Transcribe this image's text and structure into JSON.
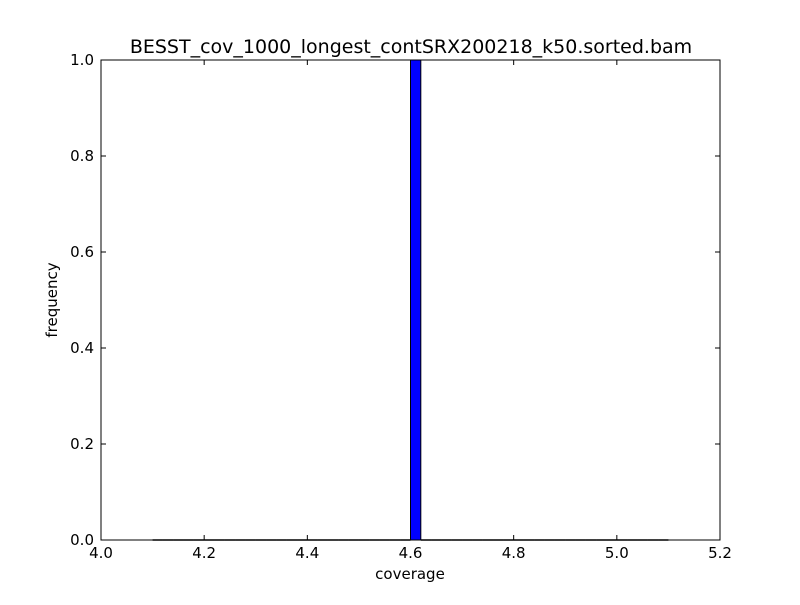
{
  "chart_data": {
    "type": "bar",
    "title": "BESST_cov_1000_longest_contSRX200218_k50.sorted.bam",
    "xlabel": "coverage",
    "ylabel": "frequency",
    "xlim": [
      4.0,
      5.2
    ],
    "ylim": [
      0.0,
      1.0
    ],
    "xticks": [
      "4.0",
      "4.2",
      "4.4",
      "4.6",
      "4.8",
      "5.0",
      "5.2"
    ],
    "yticks": [
      "0.0",
      "0.2",
      "0.4",
      "0.6",
      "0.8",
      "1.0"
    ],
    "grid": false,
    "bar_color": "#0000ff",
    "bin_range": [
      4.1,
      5.1
    ],
    "bin_count": 50,
    "bars": [
      {
        "x0": 4.6,
        "x1": 4.62,
        "value": 1.0
      }
    ]
  }
}
